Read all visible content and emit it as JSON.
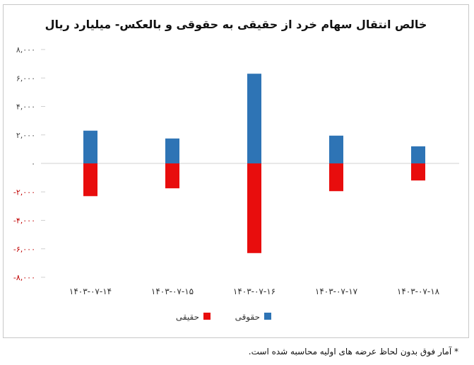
{
  "colors": {
    "legal": "#e80d0d",
    "individual": "#2e74b5",
    "axis": "#d0d0d0",
    "negative_tick": "#c00000",
    "positive_tick": "#444444"
  },
  "footnote": "* آمار فوق بدون لحاظ عرضه های اولیه محاسبه شده است.",
  "chart_data": {
    "type": "bar",
    "stacked": true,
    "title": "خالص انتقال سهام خرد از حقیقی به حقوقی و بالعکس- میلیارد ریال",
    "xlabel": "",
    "ylabel": "",
    "ylim": [
      -8000,
      8000
    ],
    "grid": false,
    "legend_position": "bottom",
    "yticks": [
      -8000,
      -6000,
      -4000,
      -2000,
      0,
      2000,
      4000,
      6000,
      8000
    ],
    "ytick_labels": [
      "-۸,۰۰۰",
      "-۶,۰۰۰",
      "-۴,۰۰۰",
      "-۲,۰۰۰",
      "۰",
      "۲,۰۰۰",
      "۴,۰۰۰",
      "۶,۰۰۰",
      "۸,۰۰۰"
    ],
    "categories": [
      "۱۴۰۳-۰۷-۱۴",
      "۱۴۰۳-۰۷-۱۵",
      "۱۴۰۳-۰۷-۱۶",
      "۱۴۰۳-۰۷-۱۷",
      "۱۴۰۳-۰۷-۱۸"
    ],
    "series": [
      {
        "name": "حقیقی",
        "color": "#e80d0d",
        "values": [
          -2300,
          -1750,
          -6300,
          -1950,
          -1200
        ]
      },
      {
        "name": "حقوقی",
        "color": "#2e74b5",
        "values": [
          2300,
          1750,
          6300,
          1950,
          1200
        ]
      }
    ]
  }
}
